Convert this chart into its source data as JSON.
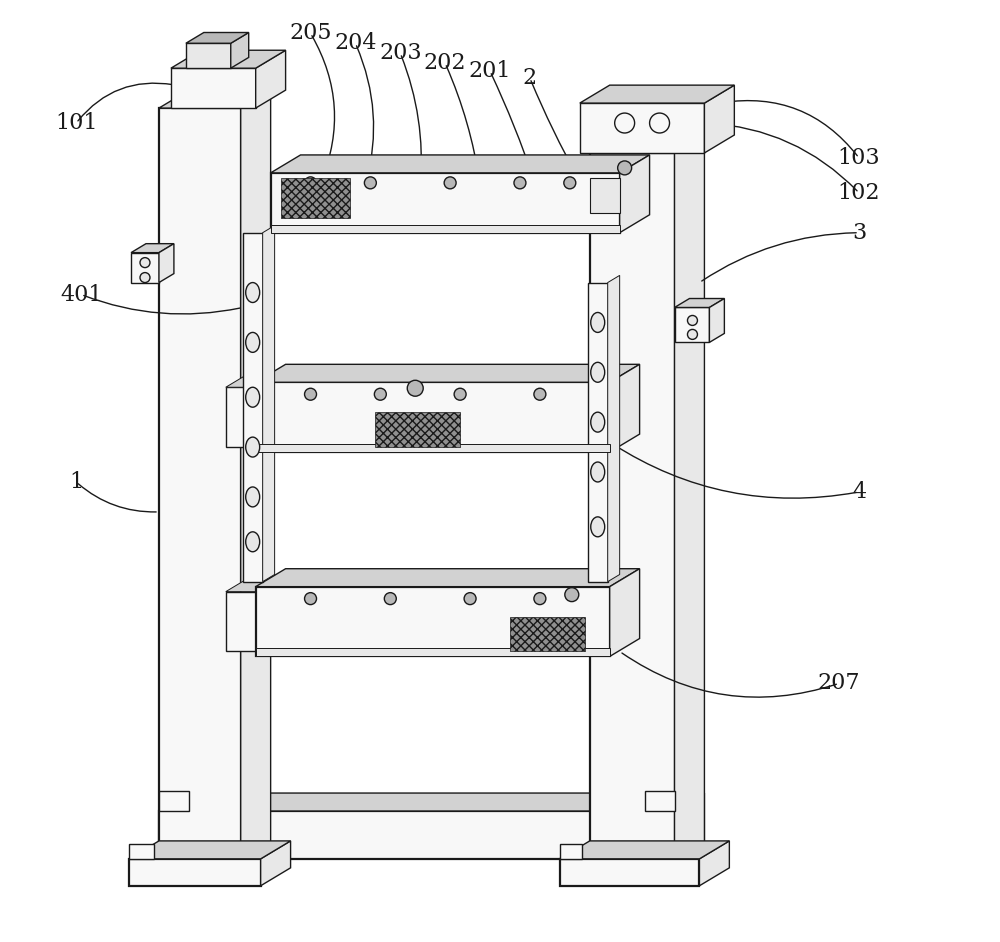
{
  "bg_color": "#ffffff",
  "lc": "#1a1a1a",
  "lw": 1.0,
  "lw2": 1.6,
  "figsize": [
    10.0,
    9.42
  ],
  "fs": 16,
  "colors": {
    "white": "#f8f8f8",
    "light": "#e8e8e8",
    "mid": "#d2d2d2",
    "dark": "#b8b8b8",
    "vdark": "#989898",
    "hatch_fc": "#888888"
  }
}
